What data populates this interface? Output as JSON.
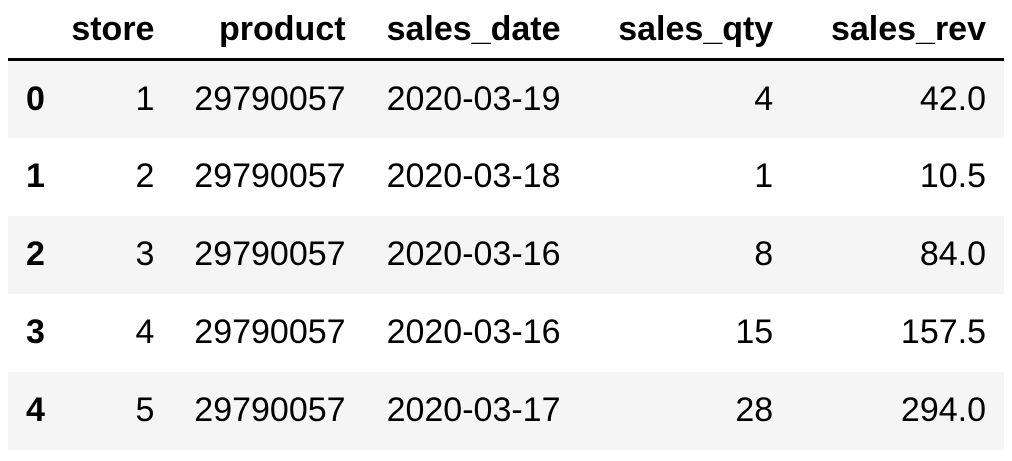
{
  "table": {
    "columns": [
      "store",
      "product",
      "sales_date",
      "sales_qty",
      "sales_rev"
    ],
    "rows": [
      {
        "index": "0",
        "cells": [
          "1",
          "29790057",
          "2020-03-19",
          "4",
          "42.0"
        ]
      },
      {
        "index": "1",
        "cells": [
          "2",
          "29790057",
          "2020-03-18",
          "1",
          "10.5"
        ]
      },
      {
        "index": "2",
        "cells": [
          "3",
          "29790057",
          "2020-03-16",
          "8",
          "84.0"
        ]
      },
      {
        "index": "3",
        "cells": [
          "4",
          "29790057",
          "2020-03-16",
          "15",
          "157.5"
        ]
      },
      {
        "index": "4",
        "cells": [
          "5",
          "29790057",
          "2020-03-17",
          "28",
          "294.0"
        ]
      }
    ]
  },
  "colors": {
    "stripe": "#f5f5f5",
    "header_rule": "#000000"
  }
}
